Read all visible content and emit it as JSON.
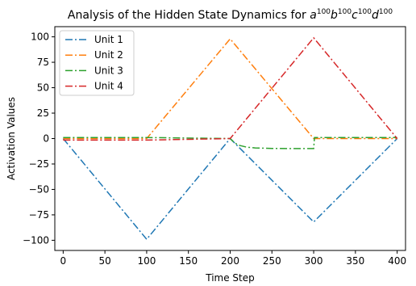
{
  "chart_data": {
    "type": "line",
    "title": "Analysis of the Hidden State Dynamics for a¹⁰⁰b¹⁰⁰c¹⁰⁰d¹⁰⁰",
    "title_parts": {
      "prefix": "Analysis of the Hidden State Dynamics for ",
      "terms": [
        {
          "base": "a",
          "exp": "100"
        },
        {
          "base": "b",
          "exp": "100"
        },
        {
          "base": "c",
          "exp": "100"
        },
        {
          "base": "d",
          "exp": "100"
        }
      ]
    },
    "xlabel": "Time Step",
    "ylabel": "Activation Values",
    "xlim": [
      -10,
      410
    ],
    "ylim": [
      -110,
      110
    ],
    "xticks": [
      0,
      50,
      100,
      150,
      200,
      250,
      300,
      350,
      400
    ],
    "yticks": [
      100,
      75,
      50,
      25,
      0,
      -25,
      -50,
      -75,
      -100
    ],
    "ytick_labels": [
      "100",
      "75",
      "50",
      "25",
      "0",
      "−25",
      "−50",
      "−75",
      "−100"
    ],
    "grid": false,
    "legend_position": "top-left",
    "line_style": "dash-dot",
    "series": [
      {
        "name": "Unit 1",
        "color": "#1f77b4",
        "x": [
          0,
          100,
          200,
          300,
          400
        ],
        "y": [
          0,
          -99,
          0,
          -82,
          0
        ]
      },
      {
        "name": "Unit 2",
        "color": "#ff7f0e",
        "x": [
          0,
          100,
          200,
          300,
          400
        ],
        "y": [
          0,
          0,
          98,
          0,
          0
        ]
      },
      {
        "name": "Unit 3",
        "color": "#2ca02c",
        "x": [
          0,
          100,
          200,
          205,
          210,
          220,
          230,
          250,
          270,
          300,
          301,
          320,
          400
        ],
        "y": [
          1,
          1,
          0,
          -4,
          -6.5,
          -8.5,
          -9.2,
          -9.7,
          -9.8,
          -9.8,
          1,
          1,
          1
        ]
      },
      {
        "name": "Unit 4",
        "color": "#d62728",
        "x": [
          0,
          100,
          200,
          300,
          400
        ],
        "y": [
          -1.5,
          -1.5,
          0,
          99,
          0
        ]
      }
    ]
  }
}
